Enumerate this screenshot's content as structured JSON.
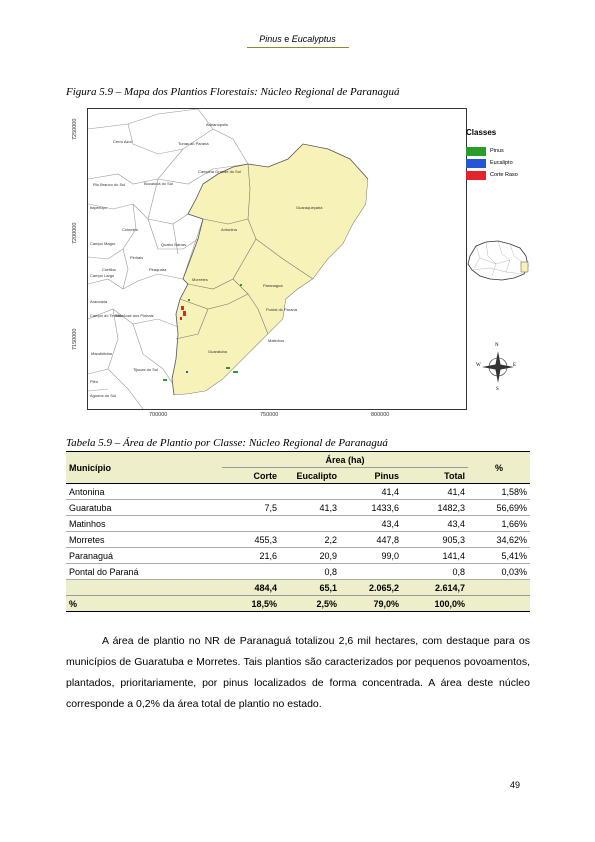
{
  "header": {
    "running_title_part1": "Pinus",
    "running_title_and": "e",
    "running_title_part2": "Eucalyptus"
  },
  "figure": {
    "caption": "Figura 5.9 – Mapa dos Plantios Florestais: Núcleo Regional de Paranaguá",
    "axis_y": [
      "7250000",
      "7200000",
      "7150000"
    ],
    "axis_x": [
      "700000",
      "750000",
      "800000"
    ],
    "legend": {
      "title": "Classes",
      "items": [
        {
          "label": "Pinus",
          "color": "#2a9d2a"
        },
        {
          "label": "Eucalipto",
          "color": "#2457d6"
        },
        {
          "label": "Corte Raso",
          "color": "#e3242b"
        }
      ]
    },
    "municipalities": [
      "Adrianópolis",
      "Cerro Azul",
      "Tunas do Paraná",
      "Rio Branco do Sul",
      "Bocaiúva do Sul",
      "Campina Grande do Sul",
      "Itaperuçu",
      "Guaraqueçaba",
      "Colombo",
      "Antonina",
      "Quatro Barras",
      "Campo Magro",
      "Pinhais",
      "Curitiba",
      "Piraquara",
      "Campo Largo",
      "Morretes",
      "Paranaguá",
      "Araucária",
      "Pontal do Paraná",
      "Campo do Tenente",
      "São José dos Pinhais",
      "Matinhos",
      "Mandirituba",
      "Guaratuba",
      "Tijucas do Sul",
      "Agudos do Sul",
      "Piên"
    ],
    "compass": {
      "n": "N",
      "s": "S",
      "e": "E",
      "w": "W"
    }
  },
  "table": {
    "caption": "Tabela 5.9 – Área de Plantio por Classe: Núcleo Regional de Paranaguá",
    "header_municipio": "Município",
    "header_area": "Área (ha)",
    "header_pct": "%",
    "sub_headers": [
      "Corte",
      "Eucalipto",
      "Pinus",
      "Total"
    ],
    "rows": [
      {
        "municipio": "Antonina",
        "corte": "",
        "eucalipto": "",
        "pinus": "41,4",
        "total": "41,4",
        "pct": "1,58%"
      },
      {
        "municipio": "Guaratuba",
        "corte": "7,5",
        "eucalipto": "41,3",
        "pinus": "1433,6",
        "total": "1482,3",
        "pct": "56,69%"
      },
      {
        "municipio": "Matinhos",
        "corte": "",
        "eucalipto": "",
        "pinus": "43,4",
        "total": "43,4",
        "pct": "1,66%"
      },
      {
        "municipio": "Morretes",
        "corte": "455,3",
        "eucalipto": "2,2",
        "pinus": "447,8",
        "total": "905,3",
        "pct": "34,62%"
      },
      {
        "municipio": "Paranaguá",
        "corte": "21,6",
        "eucalipto": "20,9",
        "pinus": "99,0",
        "total": "141,4",
        "pct": "5,41%"
      },
      {
        "municipio": "Pontal do Paraná",
        "corte": "",
        "eucalipto": "0,8",
        "pinus": "",
        "total": "0,8",
        "pct": "0,03%"
      }
    ],
    "totals": {
      "corte": "484,4",
      "eucalipto": "65,1",
      "pinus": "2.065,2",
      "total": "2.614,7"
    },
    "percent_row": {
      "label": "%",
      "corte": "18,5%",
      "eucalipto": "2,5%",
      "pinus": "79,0%",
      "total": "100,0%"
    }
  },
  "body_text": "A área de plantio no NR de Paranaguá totalizou 2,6 mil hectares, com destaque para os municípios de Guaratuba e Morretes. Tais plantios são caracterizados por pequenos povoamentos, plantados, prioritariamente, por pinus localizados de forma concentrada. A área deste núcleo corresponde a 0,2% da área total de plantio no estado.",
  "page_number": "49"
}
